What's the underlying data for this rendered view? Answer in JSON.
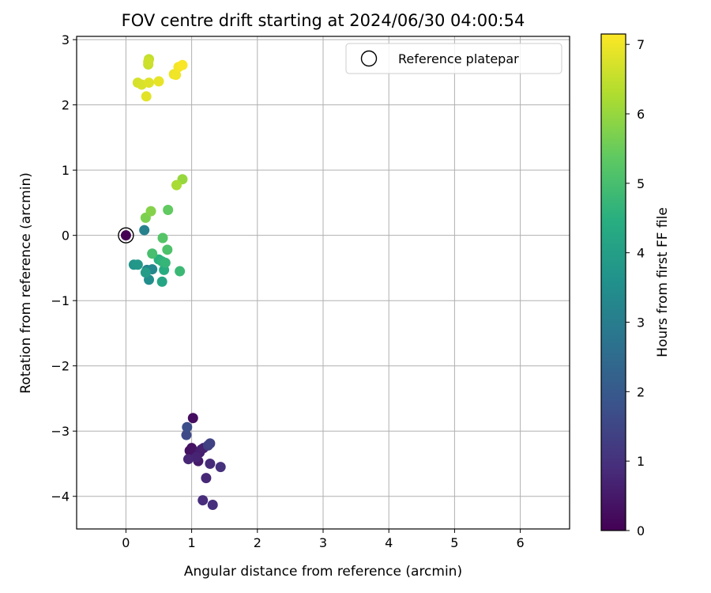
{
  "chart_data": {
    "type": "scatter",
    "title": "FOV centre drift starting at 2024/06/30 04:00:54",
    "xlabel": "Angular distance from reference (arcmin)",
    "ylabel": "Rotation from reference (arcmin)",
    "xlim": [
      -0.75,
      6.75
    ],
    "ylim": [
      -4.5,
      3.05
    ],
    "xticks": [
      0,
      1,
      2,
      3,
      4,
      5,
      6
    ],
    "yticks": [
      -4,
      -3,
      -2,
      -1,
      0,
      1,
      2,
      3
    ],
    "grid": true,
    "legend": {
      "entries": [
        "Reference platepar"
      ],
      "position": "upper-right"
    },
    "colorbar": {
      "label": "Hours from first FF file",
      "colormap": "viridis",
      "range": [
        0,
        7.15
      ],
      "ticks": [
        0,
        1,
        2,
        3,
        4,
        5,
        6,
        7
      ]
    },
    "reference_point": {
      "x": 0,
      "y": 0
    },
    "points": [
      {
        "x": 1.02,
        "y": -2.8,
        "h": 0.25
      },
      {
        "x": 0.97,
        "y": -3.3,
        "h": 0.3
      },
      {
        "x": 1.0,
        "y": -3.26,
        "h": 0.35
      },
      {
        "x": 1.05,
        "y": -3.32,
        "h": 0.4
      },
      {
        "x": 1.1,
        "y": -3.46,
        "h": 0.5
      },
      {
        "x": 1.12,
        "y": -3.33,
        "h": 0.55
      },
      {
        "x": 1.15,
        "y": -3.28,
        "h": 0.6
      },
      {
        "x": 1.18,
        "y": -3.26,
        "h": 0.65
      },
      {
        "x": 1.07,
        "y": -3.4,
        "h": 0.7
      },
      {
        "x": 0.95,
        "y": -3.43,
        "h": 0.75
      },
      {
        "x": 1.22,
        "y": -3.72,
        "h": 0.8
      },
      {
        "x": 1.28,
        "y": -3.5,
        "h": 0.85
      },
      {
        "x": 1.17,
        "y": -4.06,
        "h": 0.9
      },
      {
        "x": 1.32,
        "y": -4.13,
        "h": 0.95
      },
      {
        "x": 1.44,
        "y": -3.55,
        "h": 1.0
      },
      {
        "x": 1.25,
        "y": -3.22,
        "h": 1.3
      },
      {
        "x": 1.28,
        "y": -3.19,
        "h": 1.4
      },
      {
        "x": 0.92,
        "y": -3.06,
        "h": 1.6
      },
      {
        "x": 0.93,
        "y": -2.94,
        "h": 1.7
      },
      {
        "x": 0.28,
        "y": 0.08,
        "h": 3.1
      },
      {
        "x": 0.32,
        "y": -0.53,
        "h": 3.2
      },
      {
        "x": 0.4,
        "y": -0.52,
        "h": 3.3
      },
      {
        "x": 0.35,
        "y": -0.68,
        "h": 3.5
      },
      {
        "x": 0.12,
        "y": -0.45,
        "h": 3.7
      },
      {
        "x": 0.18,
        "y": -0.45,
        "h": 3.8
      },
      {
        "x": 0.3,
        "y": -0.57,
        "h": 3.9
      },
      {
        "x": 0.55,
        "y": -0.71,
        "h": 4.2
      },
      {
        "x": 0.58,
        "y": -0.53,
        "h": 4.4
      },
      {
        "x": 0.5,
        "y": -0.37,
        "h": 4.5
      },
      {
        "x": 0.55,
        "y": -0.4,
        "h": 4.6
      },
      {
        "x": 0.6,
        "y": -0.42,
        "h": 4.7
      },
      {
        "x": 0.82,
        "y": -0.55,
        "h": 4.8
      },
      {
        "x": 0.4,
        "y": -0.28,
        "h": 5.0
      },
      {
        "x": 0.63,
        "y": -0.22,
        "h": 5.1
      },
      {
        "x": 0.56,
        "y": -0.04,
        "h": 5.2
      },
      {
        "x": 0.64,
        "y": 0.39,
        "h": 5.4
      },
      {
        "x": 0.3,
        "y": 0.27,
        "h": 5.7
      },
      {
        "x": 0.38,
        "y": 0.37,
        "h": 5.8
      },
      {
        "x": 0.86,
        "y": 0.86,
        "h": 6.0
      },
      {
        "x": 0.77,
        "y": 0.77,
        "h": 6.2
      },
      {
        "x": 0.35,
        "y": 2.7,
        "h": 6.5
      },
      {
        "x": 0.34,
        "y": 2.62,
        "h": 6.55
      },
      {
        "x": 0.34,
        "y": 2.66,
        "h": 6.6
      },
      {
        "x": 0.18,
        "y": 2.34,
        "h": 6.7
      },
      {
        "x": 0.24,
        "y": 2.31,
        "h": 6.75
      },
      {
        "x": 0.35,
        "y": 2.34,
        "h": 6.8
      },
      {
        "x": 0.31,
        "y": 2.13,
        "h": 6.85
      },
      {
        "x": 0.5,
        "y": 2.36,
        "h": 6.9
      },
      {
        "x": 0.73,
        "y": 2.47,
        "h": 6.95
      },
      {
        "x": 0.76,
        "y": 2.46,
        "h": 7.0
      },
      {
        "x": 0.8,
        "y": 2.58,
        "h": 7.05
      },
      {
        "x": 0.86,
        "y": 2.61,
        "h": 7.1
      }
    ]
  }
}
